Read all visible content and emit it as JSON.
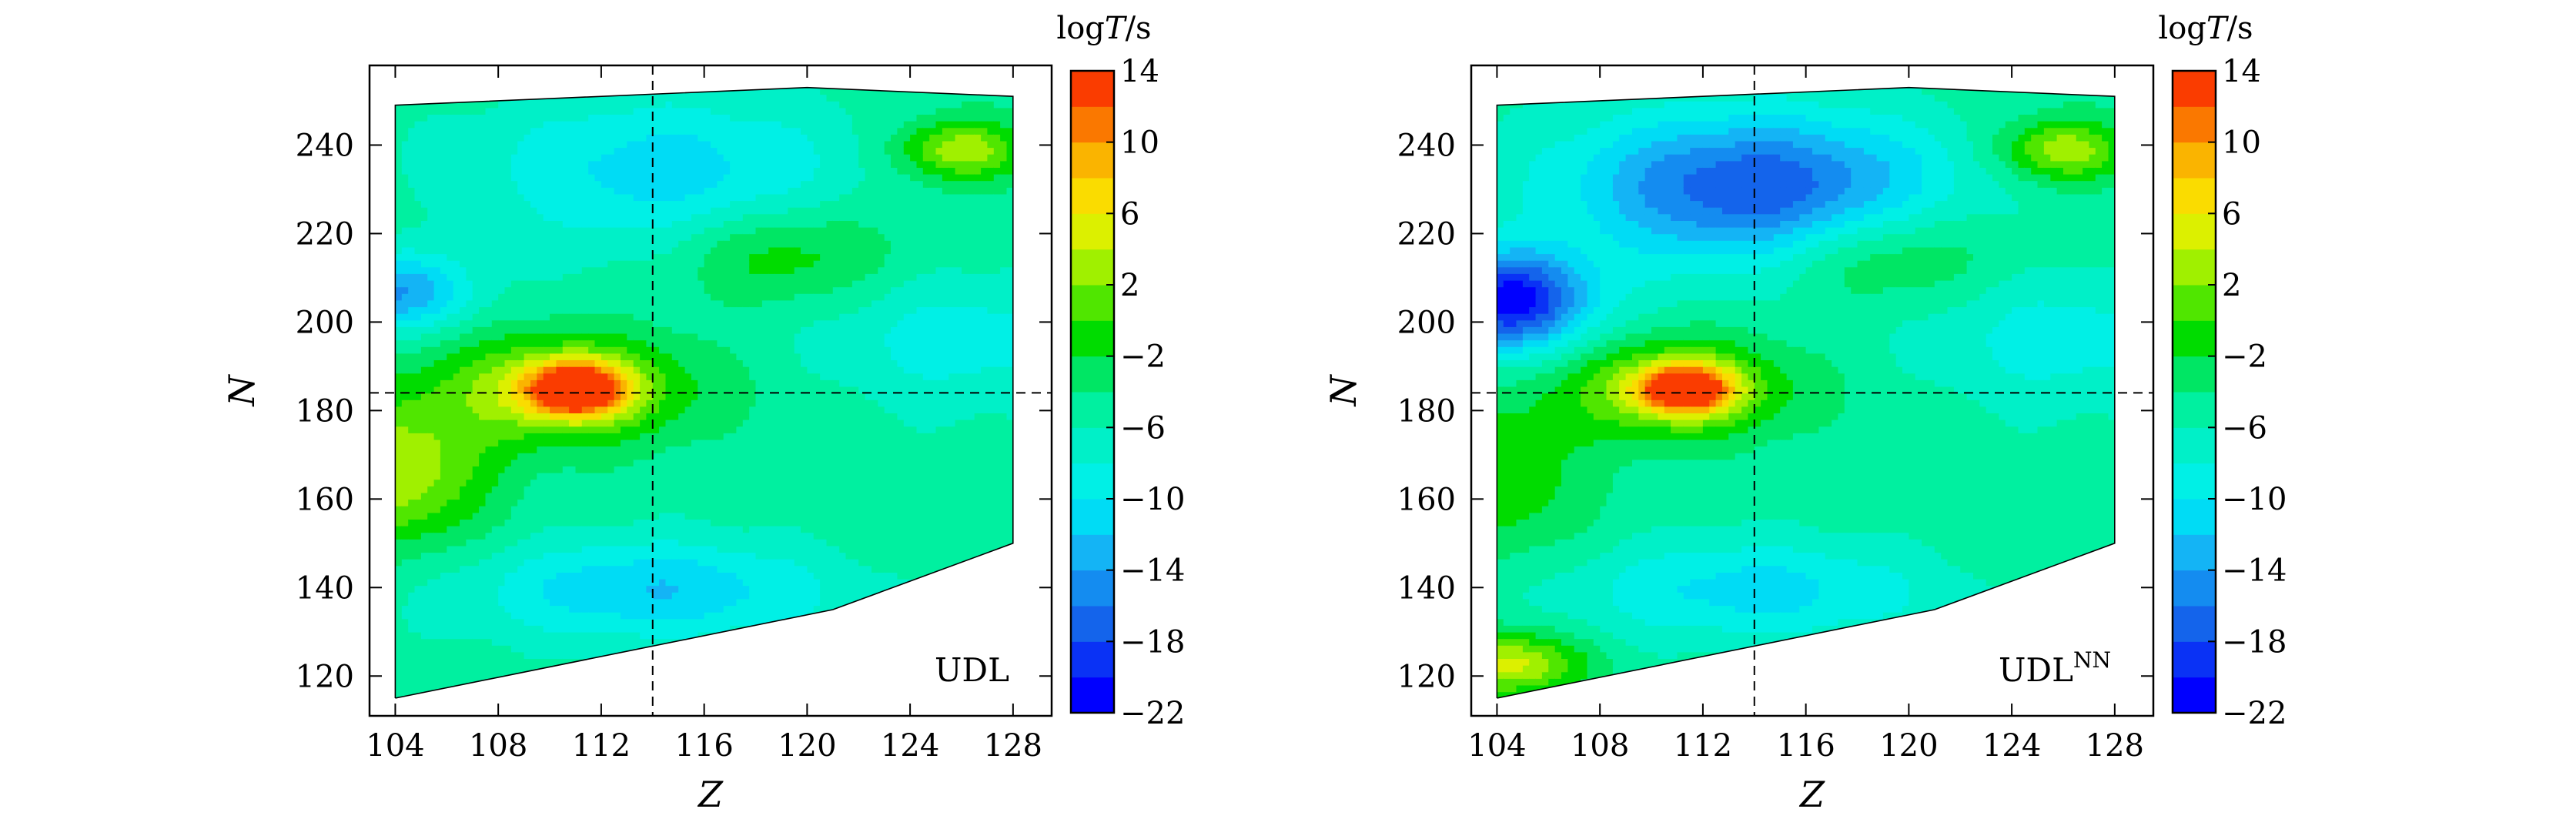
{
  "chart_data": [
    {
      "type": "heatmap",
      "panel_label": "UDL",
      "panel_label_sup": "",
      "xlabel": "Z",
      "ylabel": "N",
      "xlim": [
        103,
        129.5
      ],
      "ylim": [
        111,
        258
      ],
      "x_ticks": [
        104,
        108,
        112,
        116,
        120,
        124,
        128
      ],
      "y_ticks": [
        120,
        140,
        160,
        180,
        200,
        220,
        240
      ],
      "reference_lines": {
        "x": 114,
        "y": 184
      },
      "domain_polygon": [
        [
          104,
          115
        ],
        [
          121,
          135
        ],
        [
          128,
          150
        ],
        [
          128,
          251
        ],
        [
          120,
          253
        ],
        [
          104,
          249
        ]
      ],
      "colorbar": {
        "title_prefix": "log",
        "title_var": "T",
        "title_suffix": "/s",
        "ticks": [
          14,
          10,
          6,
          2,
          -2,
          -6,
          -10,
          -14,
          -18,
          -22
        ],
        "levels": [
          -22,
          -20,
          -18,
          -16,
          -14,
          -12,
          -10,
          -8,
          -6,
          -4,
          -2,
          0,
          2,
          4,
          6,
          8,
          10,
          12,
          14
        ],
        "colors": [
          "#0000ff",
          "#0a32f5",
          "#1464eb",
          "#148cf0",
          "#14b4f5",
          "#00dcf5",
          "#00f0e6",
          "#00f0c8",
          "#00f0a0",
          "#00e664",
          "#00dc00",
          "#50e600",
          "#a0f000",
          "#dcf000",
          "#fadc00",
          "#fab400",
          "#fa7800",
          "#fa3c00"
        ]
      },
      "features": [
        {
          "x": 111,
          "y": 185,
          "v": 13.5,
          "sx": 1.3,
          "sy": 4
        },
        {
          "x": 110.5,
          "y": 185,
          "v": 4,
          "sx": 3.5,
          "sy": 9
        },
        {
          "x": 104,
          "y": 166,
          "v": 4,
          "sx": 2.5,
          "sy": 11
        },
        {
          "x": 126,
          "y": 239,
          "v": 4,
          "sx": 1.8,
          "sy": 5
        },
        {
          "x": 119,
          "y": 215,
          "v": 0,
          "sx": 3,
          "sy": 8
        },
        {
          "x": 114.5,
          "y": 233,
          "v": -11,
          "sx": 5,
          "sy": 13
        },
        {
          "x": 104,
          "y": 207,
          "v": -14,
          "sx": 2,
          "sy": 6
        },
        {
          "x": 114,
          "y": 140,
          "v": -12,
          "sx": 5,
          "sy": 8
        },
        {
          "x": 126,
          "y": 195,
          "v": -9,
          "sx": 4,
          "sy": 11
        }
      ]
    },
    {
      "type": "heatmap",
      "panel_label": "UDL",
      "panel_label_sup": "NN",
      "xlabel": "Z",
      "ylabel": "N",
      "xlim": [
        103,
        129.5
      ],
      "ylim": [
        111,
        258
      ],
      "x_ticks": [
        104,
        108,
        112,
        116,
        120,
        124,
        128
      ],
      "y_ticks": [
        120,
        140,
        160,
        180,
        200,
        220,
        240
      ],
      "reference_lines": {
        "x": 114,
        "y": 184
      },
      "domain_polygon": [
        [
          104,
          115
        ],
        [
          121,
          135
        ],
        [
          128,
          150
        ],
        [
          128,
          251
        ],
        [
          120,
          253
        ],
        [
          104,
          249
        ]
      ],
      "colorbar": {
        "title_prefix": "log",
        "title_var": "T",
        "title_suffix": "/s",
        "ticks": [
          14,
          10,
          6,
          2,
          -2,
          -6,
          -10,
          -14,
          -18,
          -22
        ],
        "levels": [
          -22,
          -20,
          -18,
          -16,
          -14,
          -12,
          -10,
          -8,
          -6,
          -4,
          -2,
          0,
          2,
          4,
          6,
          8,
          10,
          12,
          14
        ],
        "colors": [
          "#0000ff",
          "#0a32f5",
          "#1464eb",
          "#148cf0",
          "#14b4f5",
          "#00dcf5",
          "#00f0e6",
          "#00f0c8",
          "#00f0a0",
          "#00e664",
          "#00dc00",
          "#50e600",
          "#a0f000",
          "#dcf000",
          "#fadc00",
          "#fab400",
          "#fa7800",
          "#fa3c00"
        ]
      },
      "features": [
        {
          "x": 111.3,
          "y": 185,
          "v": 13,
          "sx": 1.2,
          "sy": 3.5
        },
        {
          "x": 111,
          "y": 185,
          "v": 4,
          "sx": 3,
          "sy": 8
        },
        {
          "x": 104.5,
          "y": 123,
          "v": 5,
          "sx": 2,
          "sy": 5
        },
        {
          "x": 104,
          "y": 165,
          "v": 0,
          "sx": 2.5,
          "sy": 12
        },
        {
          "x": 126,
          "y": 239,
          "v": 4,
          "sx": 1.8,
          "sy": 5
        },
        {
          "x": 119,
          "y": 215,
          "v": 0,
          "sx": 3,
          "sy": 8
        },
        {
          "x": 104.5,
          "y": 205,
          "v": -21,
          "sx": 2.2,
          "sy": 8
        },
        {
          "x": 114,
          "y": 230,
          "v": -18,
          "sx": 5,
          "sy": 12
        },
        {
          "x": 114,
          "y": 140,
          "v": -11,
          "sx": 5,
          "sy": 8
        },
        {
          "x": 126,
          "y": 195,
          "v": -9,
          "sx": 4,
          "sy": 11
        }
      ]
    }
  ]
}
